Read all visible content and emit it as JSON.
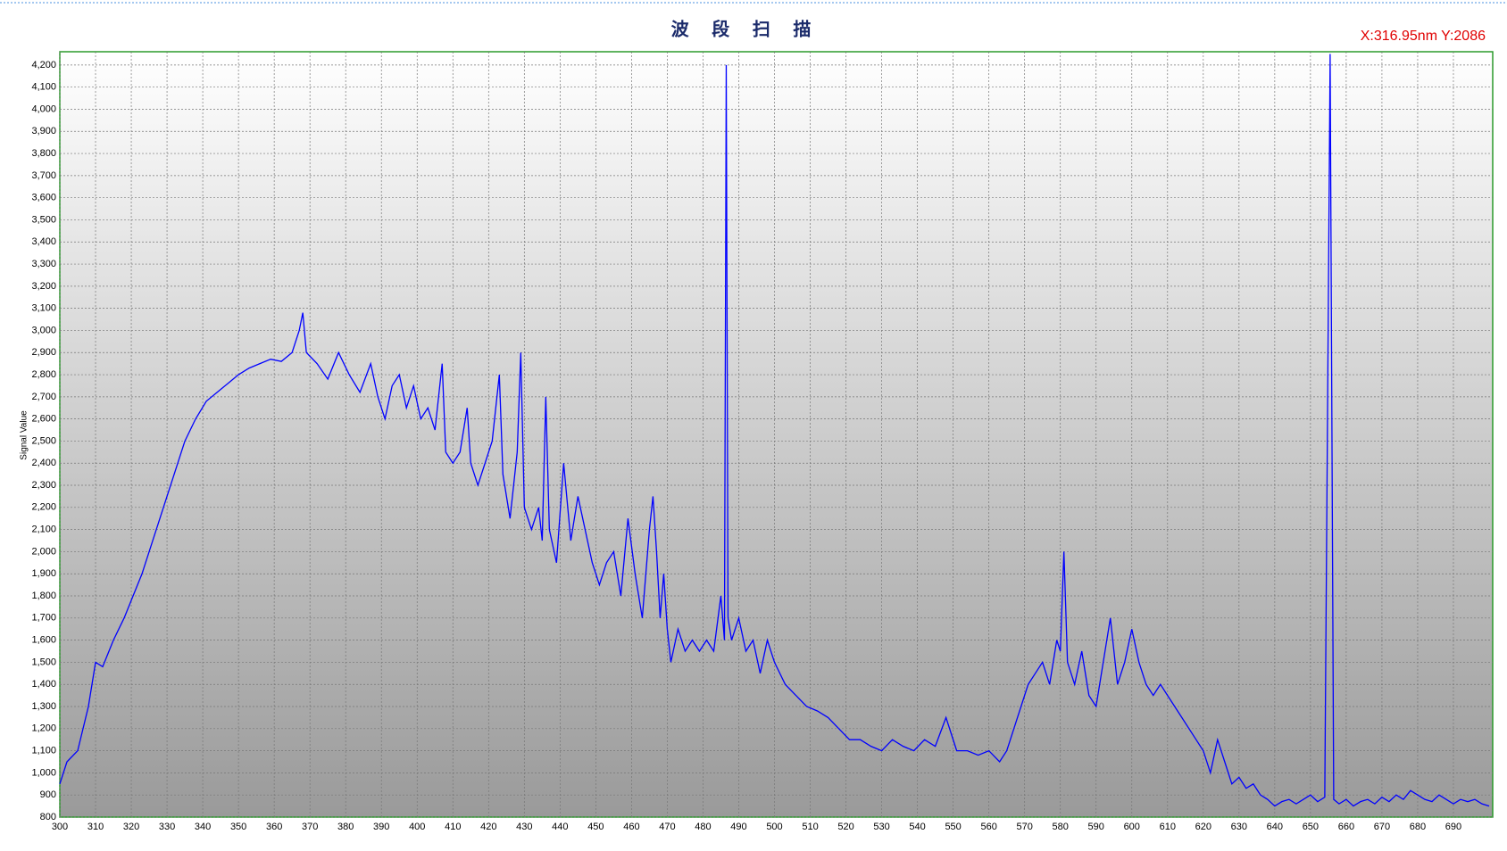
{
  "chart_data": {
    "type": "line",
    "title": "波 段 扫 描",
    "annotation": "X:316.95nm  Y:2086",
    "y_label": "Signal Value",
    "x": [
      300,
      302,
      305,
      308,
      310,
      312,
      315,
      318,
      320,
      323,
      326,
      329,
      332,
      335,
      338,
      341,
      344,
      347,
      350,
      353,
      356,
      359,
      362,
      365,
      367,
      368,
      369,
      372,
      375,
      378,
      381,
      384,
      387,
      389,
      391,
      393,
      395,
      397,
      399,
      401,
      403,
      405,
      407,
      408,
      410,
      412,
      414,
      415,
      417,
      419,
      421,
      423,
      424,
      426,
      428,
      429,
      430,
      432,
      434,
      435,
      436,
      437,
      439,
      441,
      443,
      445,
      447,
      449,
      451,
      453,
      455,
      457,
      459,
      461,
      463,
      465,
      466,
      467,
      468,
      469,
      470,
      471,
      473,
      475,
      477,
      479,
      481,
      483,
      485,
      486,
      486.5,
      487,
      488,
      490,
      492,
      494,
      496,
      498,
      500,
      503,
      506,
      509,
      512,
      515,
      518,
      521,
      524,
      527,
      530,
      533,
      536,
      539,
      542,
      545,
      548,
      551,
      554,
      557,
      560,
      563,
      565,
      567,
      569,
      571,
      573,
      575,
      577,
      579,
      580,
      581,
      582,
      584,
      586,
      588,
      590,
      592,
      594,
      596,
      598,
      600,
      602,
      604,
      606,
      608,
      610,
      612,
      614,
      616,
      618,
      620,
      622,
      624,
      626,
      628,
      630,
      632,
      634,
      636,
      638,
      640,
      642,
      644,
      646,
      648,
      650,
      652,
      654,
      655.5,
      656.5,
      658,
      660,
      662,
      664,
      666,
      668,
      670,
      672,
      674,
      676,
      678,
      680,
      682,
      684,
      686,
      688,
      690,
      692,
      694,
      696,
      698,
      700
    ],
    "series": [
      {
        "name": "Signal",
        "color": "#0000ff",
        "values": [
          950,
          1050,
          1100,
          1300,
          1500,
          1480,
          1600,
          1700,
          1780,
          1900,
          2050,
          2200,
          2350,
          2500,
          2600,
          2680,
          2720,
          2760,
          2800,
          2830,
          2850,
          2870,
          2860,
          2900,
          3000,
          3080,
          2900,
          2850,
          2780,
          2900,
          2800,
          2720,
          2850,
          2700,
          2600,
          2750,
          2800,
          2650,
          2750,
          2600,
          2650,
          2550,
          2850,
          2450,
          2400,
          2450,
          2650,
          2400,
          2300,
          2400,
          2500,
          2800,
          2350,
          2150,
          2450,
          2900,
          2200,
          2100,
          2200,
          2050,
          2700,
          2100,
          1950,
          2400,
          2050,
          2250,
          2100,
          1950,
          1850,
          1950,
          2000,
          1800,
          2150,
          1900,
          1700,
          2100,
          2250,
          2000,
          1700,
          1900,
          1650,
          1500,
          1650,
          1550,
          1600,
          1550,
          1600,
          1550,
          1800,
          1600,
          4200,
          1700,
          1600,
          1700,
          1550,
          1600,
          1450,
          1600,
          1500,
          1400,
          1350,
          1300,
          1280,
          1250,
          1200,
          1150,
          1150,
          1120,
          1100,
          1150,
          1120,
          1100,
          1150,
          1120,
          1250,
          1100,
          1100,
          1080,
          1100,
          1050,
          1100,
          1200,
          1300,
          1400,
          1450,
          1500,
          1400,
          1600,
          1550,
          2000,
          1500,
          1400,
          1550,
          1350,
          1300,
          1500,
          1700,
          1400,
          1500,
          1650,
          1500,
          1400,
          1350,
          1400,
          1350,
          1300,
          1250,
          1200,
          1150,
          1100,
          1000,
          1150,
          1050,
          950,
          980,
          930,
          950,
          900,
          880,
          850,
          870,
          880,
          860,
          880,
          900,
          870,
          890,
          4250,
          880,
          860,
          880,
          850,
          870,
          880,
          860,
          890,
          870,
          900,
          880,
          920,
          900,
          880,
          870,
          900,
          880,
          860,
          880,
          870,
          880,
          860,
          850
        ]
      }
    ],
    "xlim": [
      300,
      701
    ],
    "ylim": [
      800,
      4260
    ],
    "xticks": [
      300,
      310,
      320,
      330,
      340,
      350,
      360,
      370,
      380,
      390,
      400,
      410,
      420,
      430,
      440,
      450,
      460,
      470,
      480,
      490,
      500,
      510,
      520,
      530,
      540,
      550,
      560,
      570,
      580,
      590,
      600,
      610,
      620,
      630,
      640,
      650,
      660,
      670,
      680,
      690
    ],
    "yticks": [
      800,
      900,
      {
        "value": 1000,
        "label": "1,000"
      },
      {
        "value": 1100,
        "label": "1,100"
      },
      {
        "value": 1200,
        "label": "1,200"
      },
      {
        "value": 1300,
        "label": "1,300"
      },
      {
        "value": 1400,
        "label": "1,400"
      },
      {
        "value": 1500,
        "label": "1,500"
      },
      {
        "value": 1600,
        "label": "1,600"
      },
      {
        "value": 1700,
        "label": "1,700"
      },
      {
        "value": 1800,
        "label": "1,800"
      },
      {
        "value": 1900,
        "label": "1,900"
      },
      {
        "value": 2000,
        "label": "2,000"
      },
      {
        "value": 2100,
        "label": "2,100"
      },
      {
        "value": 2200,
        "label": "2,200"
      },
      {
        "value": 2300,
        "label": "2,300"
      },
      {
        "value": 2400,
        "label": "2,400"
      },
      {
        "value": 2500,
        "label": "2,500"
      },
      {
        "value": 2600,
        "label": "2,600"
      },
      {
        "value": 2700,
        "label": "2,700"
      },
      {
        "value": 2800,
        "label": "2,800"
      },
      {
        "value": 2900,
        "label": "2,900"
      },
      {
        "value": 3000,
        "label": "3,000"
      },
      {
        "value": 3100,
        "label": "3,100"
      },
      {
        "value": 3200,
        "label": "3,200"
      },
      {
        "value": 3300,
        "label": "3,300"
      },
      {
        "value": 3400,
        "label": "3,400"
      },
      {
        "value": 3500,
        "label": "3,500"
      },
      {
        "value": 3600,
        "label": "3,600"
      },
      {
        "value": 3700,
        "label": "3,700"
      },
      {
        "value": 3800,
        "label": "3,800"
      },
      {
        "value": 3900,
        "label": "3,900"
      },
      {
        "value": 4000,
        "label": "4,000"
      },
      {
        "value": 4100,
        "label": "4,100"
      },
      {
        "value": 4200,
        "label": "4,200"
      }
    ],
    "grid": true
  }
}
